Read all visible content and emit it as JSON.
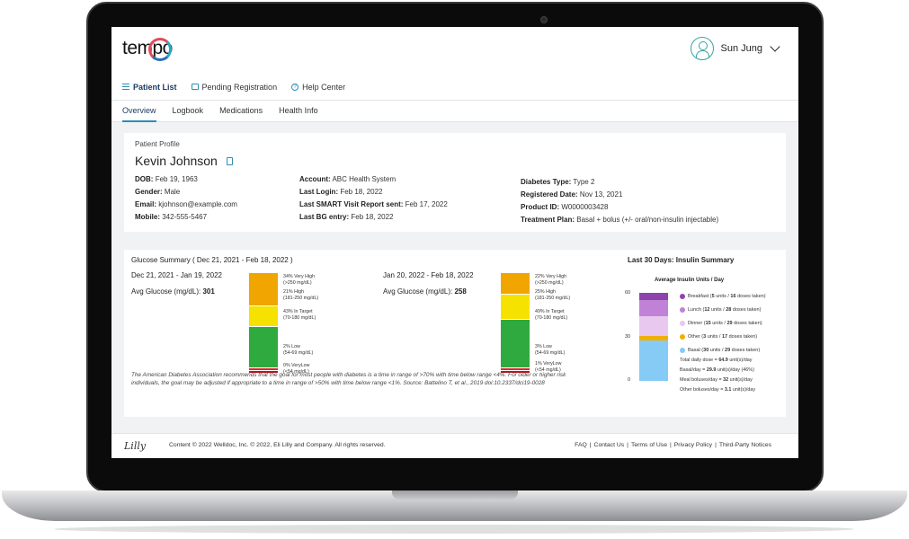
{
  "brand": {
    "logo": "tempo"
  },
  "user": {
    "name": "Sun Jung"
  },
  "nav": {
    "items": [
      "Patient List",
      "Pending Registration",
      "Help Center"
    ]
  },
  "tabs": [
    "Overview",
    "Logbook",
    "Medications",
    "Health Info"
  ],
  "profile": {
    "heading": "Patient Profile",
    "name": "Kevin Johnson",
    "col1": [
      {
        "label": "DOB:",
        "value": "Feb 19, 1963"
      },
      {
        "label": "Gender:",
        "value": "Male"
      },
      {
        "label": "Email:",
        "value": "kjohnson@example.com"
      },
      {
        "label": "Mobile:",
        "value": "342-555-5467"
      }
    ],
    "col2": [
      {
        "label": "Account:",
        "value": "ABC Health System"
      },
      {
        "label": "Last Login:",
        "value": "Feb 18, 2022"
      },
      {
        "label": "Last SMART Visit Report sent:",
        "value": "Feb 17, 2022"
      },
      {
        "label": "Last BG entry:",
        "value": "Feb 18, 2022"
      }
    ],
    "col3": [
      {
        "label": "Diabetes Type:",
        "value": "Type 2"
      },
      {
        "label": "Registered Date:",
        "value": "Nov 13, 2021"
      },
      {
        "label": "Product ID:",
        "value": "W0000003428"
      },
      {
        "label": "Treatment Plan:",
        "value": "Basal + bolus (+/- oral/non-insulin injectable)"
      }
    ]
  },
  "glucose": {
    "title": "Glucose Summary ( Dec 21, 2021 - Feb 18, 2022 )",
    "avg_label": "Avg Glucose (mg/dL):",
    "periods": [
      {
        "range": "Dec 21, 2021 - Jan 19, 2022",
        "avg": "301",
        "very_high": "34% Very High",
        "very_high_sub": "(>250 mg/dL)",
        "high": "21% High",
        "high_sub": "(181-250 mg/dL)",
        "target": "43% In Target",
        "target_sub": "(70-180 mg/dL)",
        "low": "2% Low",
        "low_sub": "(54-69 mg/dL)",
        "very_low": "0% VeryLow",
        "very_low_sub": "(<54 mg/dL)"
      },
      {
        "range": "Jan 20, 2022 - Feb 18, 2022",
        "avg": "258",
        "very_high": "22% Very High",
        "very_high_sub": "(>250 mg/dL)",
        "high": "25% High",
        "high_sub": "(181-250 mg/dL)",
        "target": "49% In Target",
        "target_sub": "(70-180 mg/dL)",
        "low": "3% Low",
        "low_sub": "(54-69 mg/dL)",
        "very_low": "1% VeryLow",
        "very_low_sub": "(<54 mg/dL)"
      }
    ],
    "note": "The American Diabetes Association recommends that the goal for most people with diabetes is a time in range of >70% with time below range <4%. For older or higher risk individuals, the goal may be adjusted if appropriate to a time in range of >50% with time below range <1%. Source: Battelino T, et al., 2019 doi:10.2337/dci19-0028"
  },
  "insulin": {
    "title": "Last 30 Days: Insulin Summary",
    "subtitle": "Average Insulin Units / Day",
    "axis": [
      "60",
      "30",
      "0"
    ],
    "legend": [
      {
        "name": "Breakfast",
        "units": "5",
        "doses": "16",
        "color": "#8e44ad"
      },
      {
        "name": "Lunch",
        "units": "12",
        "doses": "28",
        "color": "#c082d6"
      },
      {
        "name": "Dinner",
        "units": "15",
        "doses": "29",
        "color": "#e9c8f0"
      },
      {
        "name": "Other",
        "units": "3",
        "doses": "17",
        "color": "#f0b000"
      },
      {
        "name": "Basal",
        "units": "30",
        "doses": "29",
        "color": "#86caf6"
      }
    ],
    "units_word": "units",
    "doses_word": "doses taken",
    "stats": [
      {
        "label": "Total daily dose =",
        "value": "64.9",
        "unit": "unit(s)/day"
      },
      {
        "label": "Basal/day =",
        "value": "29.9",
        "unit": "unit(s)/day (46%)"
      },
      {
        "label": "Meal boluses/day =",
        "value": "32",
        "unit": "unit(s)/day"
      },
      {
        "label": "Other boluses/day =",
        "value": "3.1",
        "unit": "unit(s)/day"
      }
    ]
  },
  "footer": {
    "brand": "Lilly",
    "copyright": "Content © 2022 Welldoc, Inc. © 2022, Eli Lilly and Company. All rights reserved.",
    "links": [
      "FAQ",
      "Contact Us",
      "Terms of Use",
      "Privacy Policy",
      "Third-Party Notices"
    ]
  },
  "colors": {
    "very_high": "#f0a500",
    "high": "#f6e200",
    "target": "#2eaa3f",
    "low": "#e0262a",
    "very_low": "#b3171c",
    "accent": "#2b8fb5"
  }
}
